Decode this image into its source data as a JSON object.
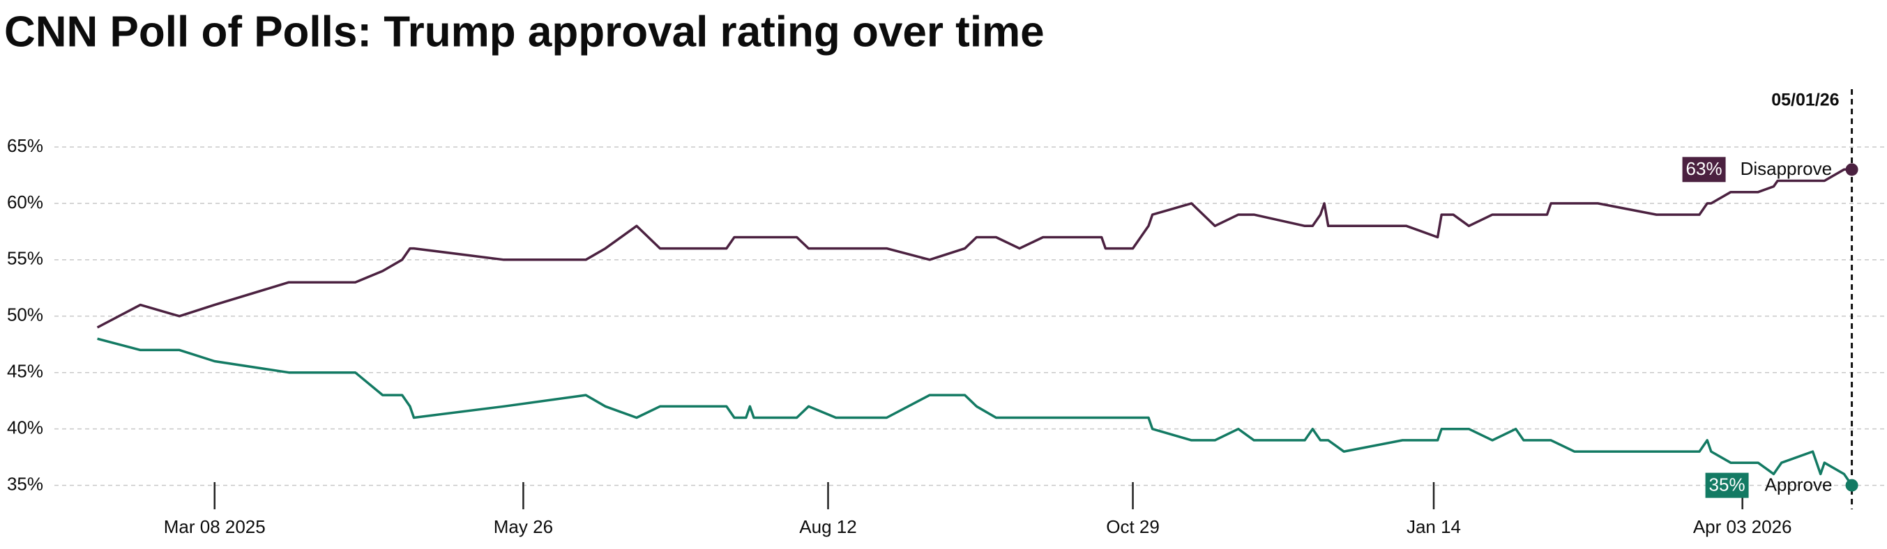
{
  "chart_data": {
    "type": "line",
    "title": "CNN Poll of Polls: Trump approval rating over time",
    "x": [
      "2025-02-06",
      "2025-02-17",
      "2025-02-27",
      "2025-03-08",
      "2025-03-27",
      "2025-04-13",
      "2025-04-20",
      "2025-04-25",
      "2025-04-27",
      "2025-04-28",
      "2025-05-21",
      "2025-06-11",
      "2025-06-16",
      "2025-06-24",
      "2025-06-30",
      "2025-07-17",
      "2025-07-19",
      "2025-07-22",
      "2025-07-23",
      "2025-07-24",
      "2025-08-04",
      "2025-08-07",
      "2025-08-14",
      "2025-08-27",
      "2025-09-07",
      "2025-09-16",
      "2025-09-19",
      "2025-09-24",
      "2025-09-30",
      "2025-10-06",
      "2025-10-21",
      "2025-10-22",
      "2025-10-29",
      "2025-11-02",
      "2025-11-03",
      "2025-11-13",
      "2025-11-19",
      "2025-11-25",
      "2025-11-29",
      "2025-12-12",
      "2025-12-14",
      "2025-12-16",
      "2025-12-17",
      "2025-12-18",
      "2025-12-22",
      "2026-01-06",
      "2026-01-07",
      "2026-01-15",
      "2026-01-16",
      "2026-01-19",
      "2026-01-23",
      "2026-01-29",
      "2026-02-04",
      "2026-02-06",
      "2026-02-12",
      "2026-02-13",
      "2026-02-19",
      "2026-02-25",
      "2026-03-12",
      "2026-03-23",
      "2026-03-25",
      "2026-03-26",
      "2026-03-31",
      "2026-04-07",
      "2026-04-11",
      "2026-04-12",
      "2026-04-13",
      "2026-04-21",
      "2026-04-22",
      "2026-04-23",
      "2026-04-24",
      "2026-04-29",
      "2026-05-01"
    ],
    "series": [
      {
        "name": "Disapprove",
        "color": "#4b2140",
        "values": [
          49,
          51,
          50,
          51,
          53,
          53,
          54,
          55,
          56,
          56,
          55,
          55,
          56,
          58,
          56,
          56,
          57,
          57,
          57,
          57,
          57,
          56,
          56,
          56,
          55,
          56,
          57,
          57,
          56,
          57,
          57,
          56,
          56,
          58,
          59,
          60,
          58,
          59,
          59,
          58,
          58,
          59,
          60,
          58,
          58,
          58,
          58,
          57,
          59,
          59,
          58,
          59,
          59,
          59,
          59,
          60,
          60,
          60,
          59,
          59,
          60,
          60,
          61,
          61,
          61.5,
          62,
          62,
          62,
          62,
          62,
          62,
          63,
          63
        ],
        "value_labels": [
          null,
          null,
          null,
          null,
          null,
          null,
          null,
          null,
          null,
          null,
          null,
          null,
          null,
          null,
          null,
          null,
          null,
          null,
          null,
          null,
          null,
          null,
          null,
          null,
          null,
          null,
          null,
          null,
          null,
          null,
          null,
          null,
          null,
          null,
          null,
          null,
          null,
          null,
          null,
          null,
          null,
          null,
          null,
          null,
          null,
          null,
          null,
          null,
          null,
          null,
          null,
          null,
          null,
          null,
          null,
          null,
          null,
          null,
          null,
          null,
          null,
          null,
          null,
          null,
          null,
          null,
          null,
          null,
          null,
          null,
          null,
          null,
          "63%"
        ]
      },
      {
        "name": "Approve",
        "color": "#137a63",
        "values": [
          48,
          47,
          47,
          46,
          45,
          45,
          43,
          43,
          42,
          41,
          42,
          43,
          42,
          41,
          42,
          42,
          41,
          41,
          42,
          41,
          41,
          42,
          41,
          41,
          43,
          43,
          42,
          41,
          41,
          41,
          41,
          41,
          41,
          41,
          40,
          39,
          39,
          40,
          39,
          39,
          40,
          39,
          39,
          39,
          38,
          39,
          39,
          39,
          40,
          40,
          40,
          39,
          40,
          39,
          39,
          39,
          38,
          38,
          38,
          38,
          39,
          38,
          37,
          37,
          36,
          36.5,
          37,
          38,
          37,
          36,
          37,
          36,
          35
        ],
        "value_labels": [
          null,
          null,
          null,
          null,
          null,
          null,
          null,
          null,
          null,
          null,
          null,
          null,
          null,
          null,
          null,
          null,
          null,
          null,
          null,
          null,
          null,
          null,
          null,
          null,
          null,
          null,
          null,
          null,
          null,
          null,
          null,
          null,
          null,
          null,
          null,
          null,
          null,
          null,
          null,
          null,
          null,
          null,
          null,
          null,
          null,
          null,
          null,
          null,
          null,
          null,
          null,
          null,
          null,
          null,
          null,
          null,
          null,
          null,
          null,
          null,
          null,
          null,
          null,
          null,
          null,
          null,
          null,
          null,
          null,
          null,
          null,
          null,
          "35%"
        ]
      }
    ],
    "xlim": [
      "2025-01-26",
      "2026-05-10"
    ],
    "xticks": [
      {
        "value": "2025-03-08",
        "label": "Mar 08 2025"
      },
      {
        "value": "2025-05-26",
        "label": "May 26"
      },
      {
        "value": "2025-08-12",
        "label": "Aug 12"
      },
      {
        "value": "2025-10-29",
        "label": "Oct 29"
      },
      {
        "value": "2026-01-14",
        "label": "Jan 14"
      },
      {
        "value": "2026-04-03",
        "label": "Apr 03 2026"
      }
    ],
    "ylim": [
      33,
      70
    ],
    "yticks": [
      {
        "value": 35,
        "label": "35%"
      },
      {
        "value": 40,
        "label": "40%"
      },
      {
        "value": 45,
        "label": "45%"
      },
      {
        "value": 50,
        "label": "50%"
      },
      {
        "value": 55,
        "label": "55%"
      },
      {
        "value": 60,
        "label": "60%"
      },
      {
        "value": 65,
        "label": "65%"
      }
    ],
    "grid": true,
    "marker": {
      "x": "2026-05-01",
      "label": "05/01/26"
    }
  }
}
